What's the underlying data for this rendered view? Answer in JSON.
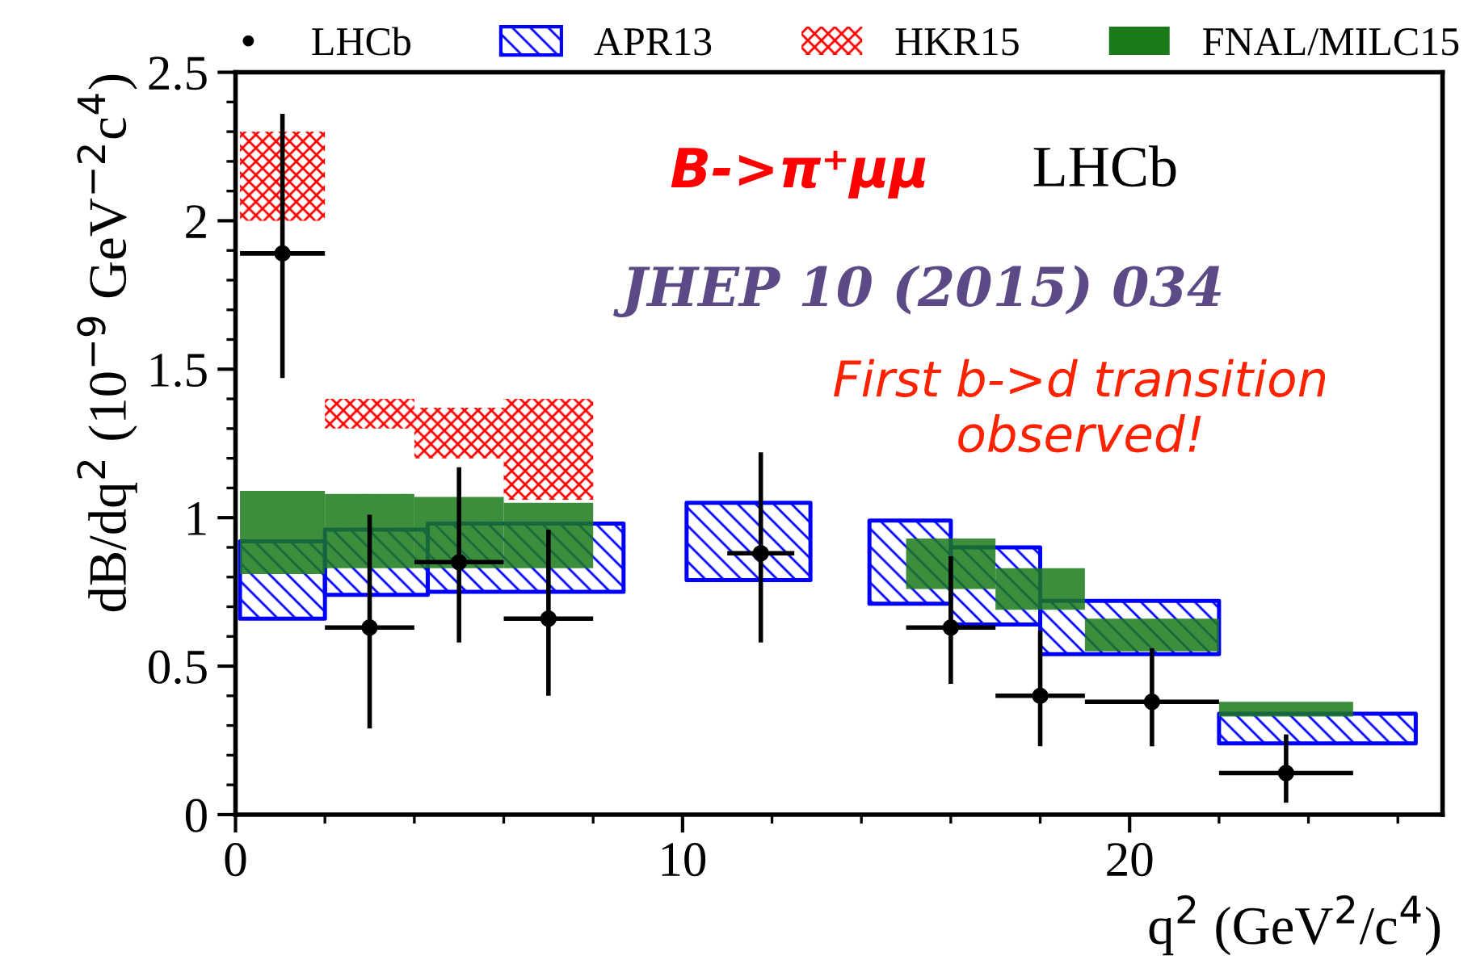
{
  "chart_data": {
    "type": "scatter",
    "xlabel": "q$^{2}$ (GeV$^{2}$/c$^{4}$)",
    "ylabel": "dB/dq$^{2}$ (10$^{−9}$ GeV$^{−2}$c$^{4}$)",
    "xlim": [
      0,
      27
    ],
    "ylim": [
      0,
      2.5
    ],
    "xticks": [
      0,
      10,
      20
    ],
    "yticks": [
      0,
      0.5,
      1,
      1.5,
      2,
      2.5
    ],
    "grid": false,
    "legend": "top",
    "annotations": [
      "B->π⁺μμ",
      "LHCb",
      "JHEP 10 (2015) 034",
      "First b->d transition\nobserved!"
    ],
    "series": [
      {
        "name": "LHCb",
        "color": "#000000",
        "marker": "circle",
        "x": [
          1.05,
          3,
          5,
          7,
          11.75,
          16,
          18,
          20.5,
          23.5
        ],
        "values": [
          1.89,
          0.63,
          0.85,
          0.66,
          0.88,
          0.63,
          0.4,
          0.38,
          0.14
        ],
        "errors": [
          [
            1.47,
            2.36
          ],
          [
            0.29,
            1.01
          ],
          [
            0.58,
            1.17
          ],
          [
            0.4,
            0.96
          ],
          [
            0.58,
            1.22
          ],
          [
            0.44,
            0.87
          ],
          [
            0.23,
            0.62
          ],
          [
            0.23,
            0.56
          ],
          [
            0.04,
            0.27
          ]
        ],
        "xerrors": [
          [
            0.1,
            2
          ],
          [
            2,
            4
          ],
          [
            4,
            6
          ],
          [
            6,
            8
          ],
          [
            11,
            12.5
          ],
          [
            15,
            17
          ],
          [
            17,
            19
          ],
          [
            19,
            22
          ],
          [
            22,
            25
          ]
        ]
      },
      {
        "name": "APR13",
        "type": "area",
        "color": "#0000ff",
        "values": [
          null,
          null,
          null,
          null,
          null,
          null,
          null,
          null,
          null,
          null,
          null,
          null,
          null,
          null,
          null,
          null
        ],
        "x": [
          0.1,
          2,
          2,
          4.3,
          4.3,
          8.68,
          10.09,
          12.86,
          14.18,
          16,
          16,
          18,
          18,
          22,
          22,
          26.4
        ],
        "lower": [
          0.66,
          0.66,
          0.74,
          0.74,
          0.75,
          0.75,
          0.79,
          0.79,
          0.71,
          0.71,
          0.64,
          0.64,
          0.54,
          0.54,
          0.24,
          0.24
        ],
        "upper": [
          0.92,
          0.92,
          0.96,
          0.96,
          0.98,
          0.98,
          1.05,
          1.05,
          0.99,
          0.99,
          0.9,
          0.9,
          0.72,
          0.72,
          0.34,
          0.34
        ]
      },
      {
        "name": "HKR15",
        "type": "area",
        "color": "#ff0000",
        "values": [
          null,
          null,
          null,
          null,
          null,
          null,
          null,
          null
        ],
        "x": [
          0.1,
          2,
          2,
          4,
          4,
          6,
          6,
          8
        ],
        "lower": [
          2.0,
          2.0,
          1.3,
          1.3,
          1.2,
          1.2,
          1.06,
          1.06
        ],
        "upper": [
          2.3,
          2.3,
          1.4,
          1.4,
          1.37,
          1.37,
          1.4,
          1.4
        ]
      },
      {
        "name": "FNAL/MILC15",
        "type": "area",
        "color": "#1a7a1a",
        "values": [
          null,
          null,
          null,
          null,
          null,
          null,
          null,
          null,
          null,
          null,
          null,
          null,
          null,
          null,
          null,
          null
        ],
        "x": [
          0.1,
          2,
          2,
          4,
          4,
          6,
          6,
          8,
          15,
          17,
          17,
          19,
          19,
          22,
          22,
          25
        ],
        "lower": [
          0.81,
          0.81,
          0.83,
          0.83,
          0.83,
          0.83,
          0.83,
          0.83,
          0.76,
          0.76,
          0.69,
          0.69,
          0.55,
          0.55,
          0.33,
          0.33
        ],
        "upper": [
          1.09,
          1.09,
          1.08,
          1.08,
          1.07,
          1.07,
          1.05,
          1.05,
          0.93,
          0.93,
          0.83,
          0.83,
          0.66,
          0.66,
          0.38,
          0.38
        ]
      }
    ]
  }
}
